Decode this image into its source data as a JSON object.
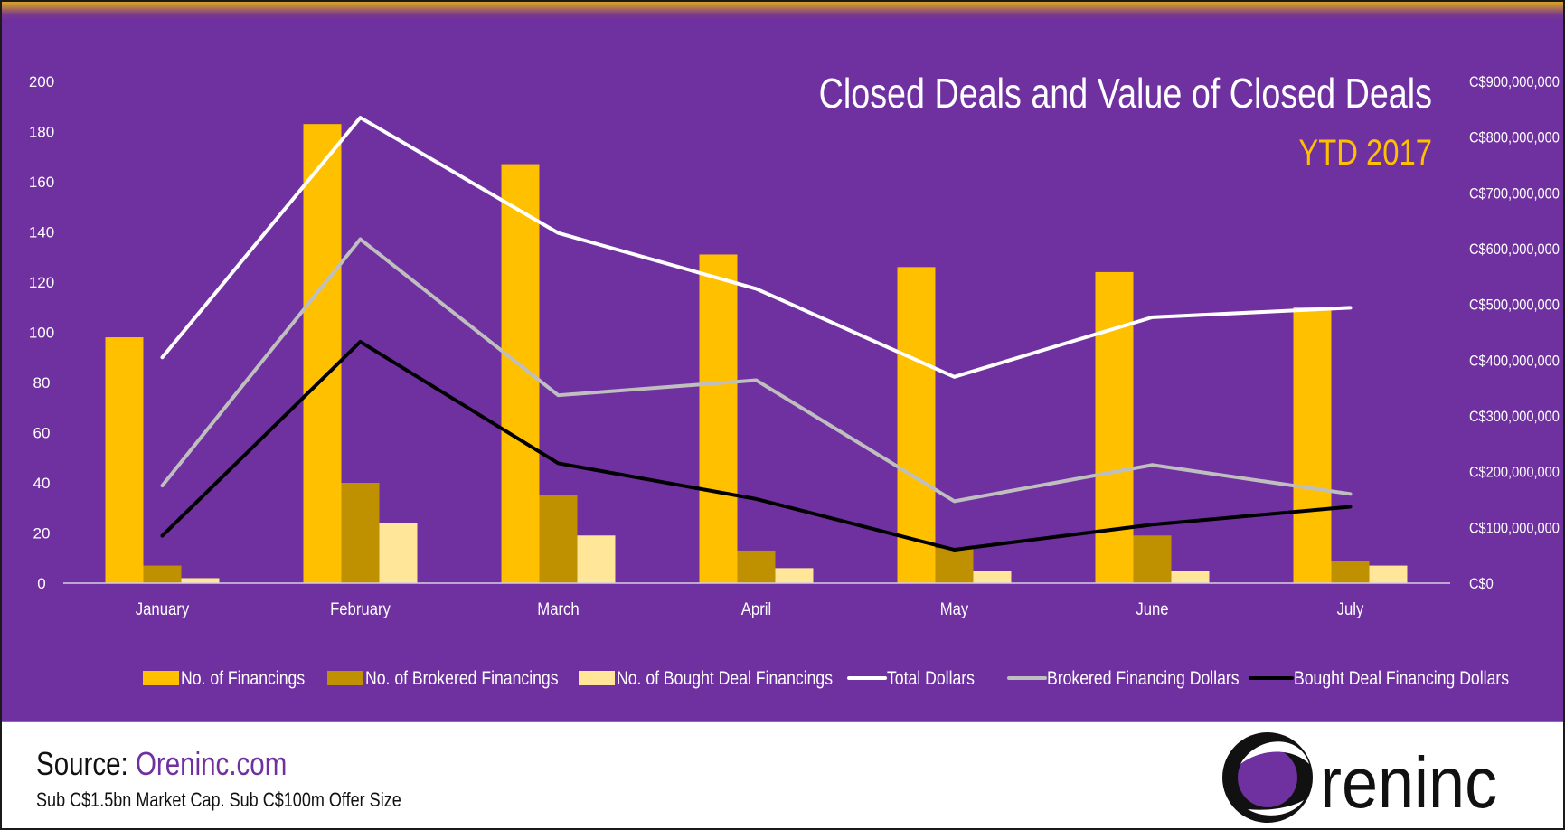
{
  "title": "Closed Deals and Value of Closed Deals",
  "subtitle": "YTD 2017",
  "footer": {
    "source_prefix": "Source:",
    "source_link": "Oreninc.com",
    "note": "Sub C$1.5bn Market Cap. Sub C$100m Offer Size",
    "logo_text": "reninc"
  },
  "colors": {
    "background": "#6f30a0",
    "financings": "#ffc000",
    "brokered": "#bf9000",
    "bought": "#ffe699",
    "total_dollars": "#ffffff",
    "brokered_dollars": "#bfbfbf",
    "bought_dollars": "#000000",
    "subtitle": "#ffc000"
  },
  "chart_data": {
    "type": "bar",
    "categories": [
      "January",
      "February",
      "March",
      "April",
      "May",
      "June",
      "July"
    ],
    "y_left": {
      "lim": [
        0,
        200
      ],
      "ticks": [
        "0",
        "20",
        "40",
        "60",
        "80",
        "100",
        "120",
        "140",
        "160",
        "180",
        "200"
      ]
    },
    "y_right": {
      "lim": [
        0,
        900000000
      ],
      "ticks": [
        "C$0",
        "C$100,000,000",
        "C$200,000,000",
        "C$300,000,000",
        "C$400,000,000",
        "C$500,000,000",
        "C$600,000,000",
        "C$700,000,000",
        "C$800,000,000",
        "C$900,000,000"
      ]
    },
    "grid": false,
    "legend_position": "bottom",
    "series": [
      {
        "name": "No. of Financings",
        "kind": "bar",
        "axis": "left",
        "color": "#ffc000",
        "values": [
          98,
          183,
          167,
          131,
          126,
          124,
          110
        ]
      },
      {
        "name": "No. of Brokered Financings",
        "kind": "bar",
        "axis": "left",
        "color": "#bf9000",
        "values": [
          7,
          40,
          35,
          13,
          14,
          19,
          9
        ]
      },
      {
        "name": "No. of Bought Deal Financings",
        "kind": "bar",
        "axis": "left",
        "color": "#ffe699",
        "values": [
          2,
          24,
          19,
          6,
          5,
          5,
          7
        ]
      },
      {
        "name": "Total Dollars",
        "kind": "line",
        "axis": "right",
        "color": "#ffffff",
        "values": [
          405000000,
          835000000,
          628000000,
          528000000,
          370000000,
          477000000,
          494000000
        ]
      },
      {
        "name": "Brokered Financing Dollars",
        "kind": "line",
        "axis": "right",
        "color": "#bfbfbf",
        "values": [
          175000000,
          617000000,
          337000000,
          364000000,
          147000000,
          212000000,
          160000000
        ]
      },
      {
        "name": "Bought Deal Financing Dollars",
        "kind": "line",
        "axis": "right",
        "color": "#000000",
        "values": [
          85000000,
          433000000,
          215000000,
          151000000,
          60000000,
          105000000,
          137000000
        ]
      }
    ]
  }
}
